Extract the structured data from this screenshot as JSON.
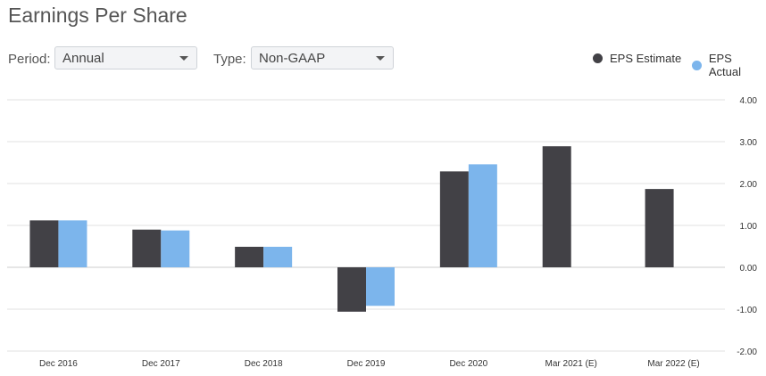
{
  "page": {
    "title": "Earnings Per Share"
  },
  "controls": {
    "period_label": "Period:",
    "period_value": "Annual",
    "type_label": "Type:",
    "type_value": "Non-GAAP"
  },
  "colors": {
    "estimate": "#424146",
    "actual": "#7cb5ec",
    "grid": "#e0e0e0"
  },
  "chart_data": {
    "type": "bar",
    "categories": [
      "Dec 2016",
      "Dec 2017",
      "Dec 2018",
      "Dec 2019",
      "Dec 2020",
      "Mar 2021 (E)",
      "Mar 2022 (E)"
    ],
    "series": [
      {
        "name": "EPS Estimate",
        "values": [
          1.12,
          0.9,
          0.49,
          -1.06,
          2.29,
          2.89,
          1.87
        ]
      },
      {
        "name": "EPS Actual",
        "values": [
          1.12,
          0.88,
          0.49,
          -0.92,
          2.46,
          null,
          null
        ]
      }
    ],
    "yticks": [
      "4.00",
      "3.00",
      "2.00",
      "1.00",
      "0.00",
      "-1.00",
      "-2.00"
    ],
    "ylim": [
      -2,
      4
    ],
    "grid": true,
    "legend": "top-right"
  }
}
